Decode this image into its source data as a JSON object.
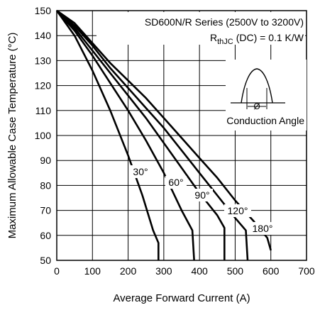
{
  "chart_data": {
    "type": "line",
    "xlabel": "Average Forward Current (A)",
    "ylabel": "Maximum Allowable Case Temperature (°C)",
    "xlim": [
      0,
      700
    ],
    "ylim": [
      50,
      150
    ],
    "xticks": [
      "0",
      "100",
      "200",
      "300",
      "400",
      "500",
      "600",
      "700"
    ],
    "yticks": [
      "50",
      "60",
      "70",
      "80",
      "90",
      "100",
      "110",
      "120",
      "130",
      "140",
      "150"
    ],
    "grid": true,
    "annotation_title": "SD600N/R Series (2500V to 3200V)",
    "rth_main": "R",
    "rth_sub": "thJC",
    "rth_rest": "(DC) = 0.1 K/W",
    "inset_label": "Conduction Angle",
    "inset_symbol": "Ø",
    "series": [
      {
        "name": "30°",
        "x": [
          0,
          50,
          100,
          150,
          200,
          240,
          270,
          285,
          285
        ],
        "y": [
          150,
          140,
          126,
          110,
          92,
          76,
          62,
          57,
          50
        ]
      },
      {
        "name": "60°",
        "x": [
          0,
          50,
          100,
          150,
          200,
          250,
          300,
          350,
          380,
          385
        ],
        "y": [
          150,
          142,
          132,
          121,
          110,
          98,
          85,
          70,
          62,
          50
        ]
      },
      {
        "name": "90°",
        "x": [
          0,
          50,
          100,
          150,
          200,
          250,
          300,
          350,
          400,
          450,
          470,
          470
        ],
        "y": [
          150,
          143,
          134,
          125,
          116,
          107,
          97,
          87,
          77,
          68,
          63,
          50
        ]
      },
      {
        "name": "120°",
        "x": [
          0,
          50,
          100,
          150,
          200,
          250,
          300,
          350,
          400,
          450,
          500,
          530,
          535
        ],
        "y": [
          150,
          144,
          136,
          127,
          119,
          111,
          103,
          94,
          85,
          76,
          67,
          62,
          50
        ]
      },
      {
        "name": "180°",
        "x": [
          0,
          50,
          100,
          150,
          200,
          250,
          300,
          350,
          400,
          450,
          500,
          550,
          590,
          600
        ],
        "y": [
          150,
          145,
          137,
          129,
          122,
          115,
          107,
          99,
          91,
          83,
          74,
          66,
          59,
          54
        ]
      }
    ]
  }
}
